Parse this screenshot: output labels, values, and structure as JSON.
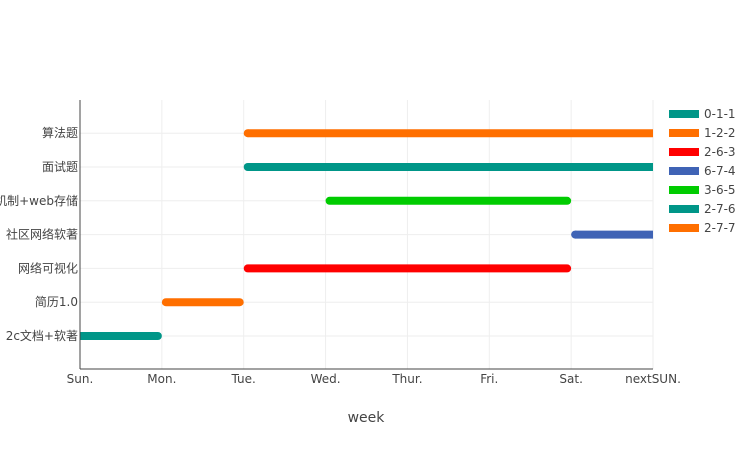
{
  "chart_data": {
    "type": "gantt",
    "title": "",
    "xlabel": "week",
    "ylabel": "",
    "x_ticks": [
      "Sun.",
      "Mon.",
      "Tue.",
      "Wed.",
      "Thur.",
      "Fri.",
      "Sat.",
      "nextSUN."
    ],
    "categories": [
      "2c文档+软著",
      "简历1.0",
      "网络可视化",
      "社区网络软著",
      "机制+web存储",
      "面试题",
      "算法题"
    ],
    "grid": true,
    "legend_position": "right",
    "series": [
      {
        "name": "0-1-1",
        "category": "2c文档+软著",
        "start": 0,
        "end": 1,
        "color": "#009688"
      },
      {
        "name": "1-2-2",
        "category": "简历1.0",
        "start": 1,
        "end": 2,
        "color": "#FF6F00"
      },
      {
        "name": "2-6-3",
        "category": "网络可视化",
        "start": 2,
        "end": 6,
        "color": "#FF0000"
      },
      {
        "name": "6-7-4",
        "category": "社区网络软著",
        "start": 6,
        "end": 7,
        "color": "#3F63B5"
      },
      {
        "name": "3-6-5",
        "category": "机制+web存储",
        "start": 3,
        "end": 6,
        "color": "#00CC00"
      },
      {
        "name": "2-7-6",
        "category": "面试题",
        "start": 2,
        "end": 7,
        "color": "#009688"
      },
      {
        "name": "2-7-7",
        "category": "算法题",
        "start": 2,
        "end": 7,
        "color": "#FF6F00"
      }
    ]
  }
}
